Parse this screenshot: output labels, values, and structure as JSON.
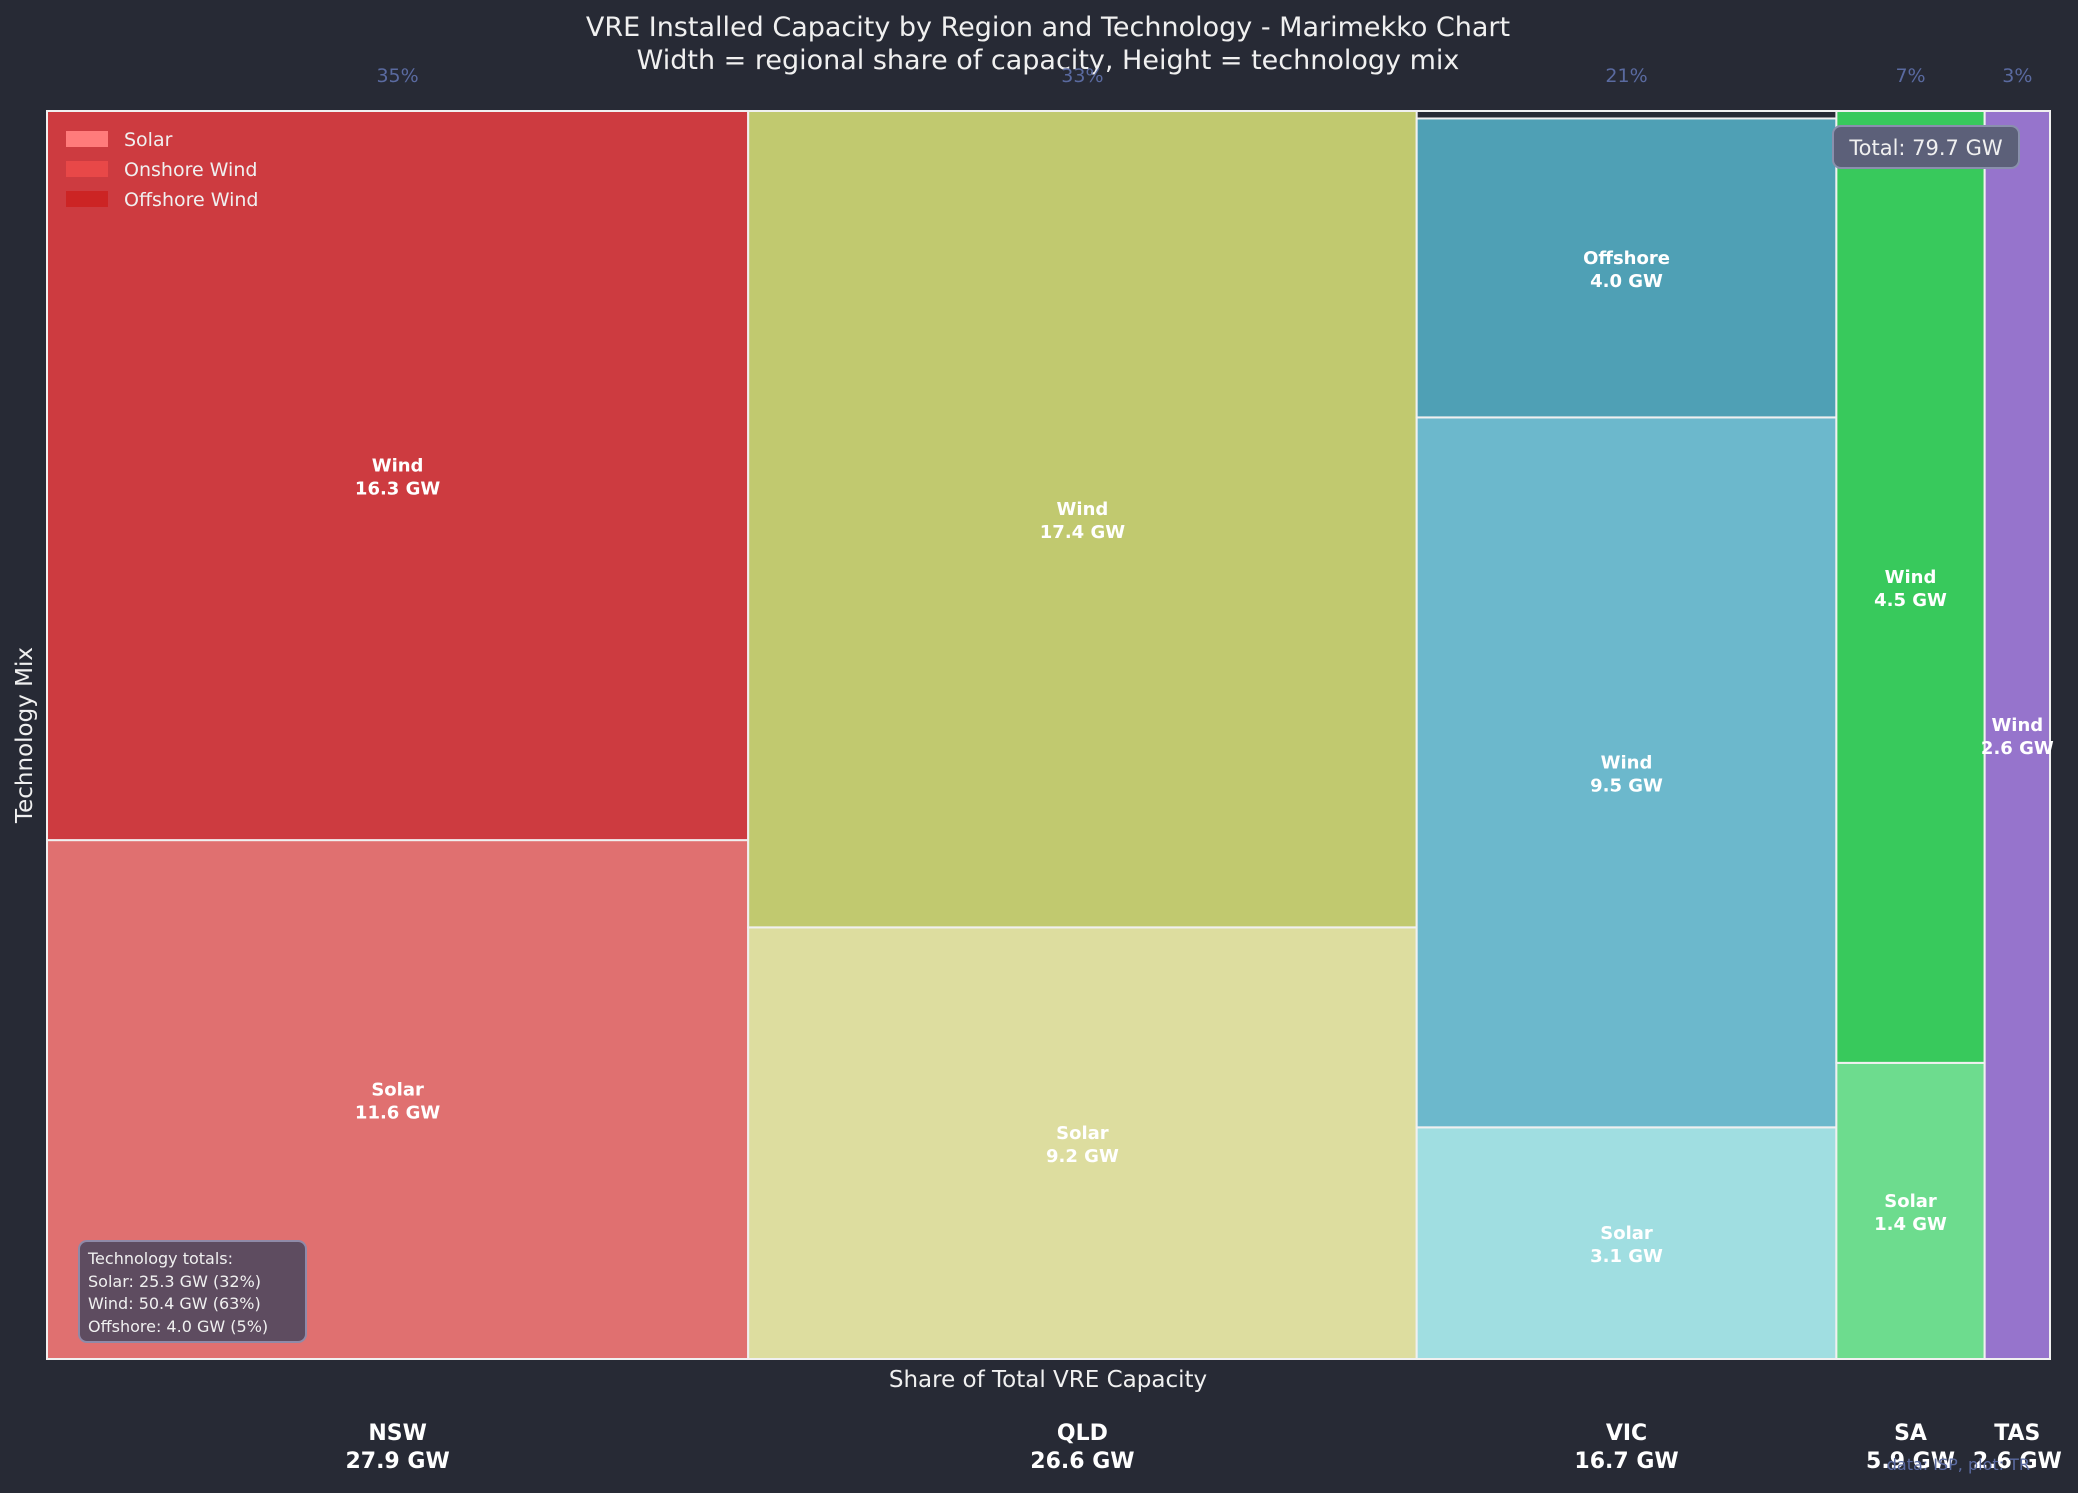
{
  "chart_data": {
    "type": "marimekko",
    "title": "VRE Installed Capacity by Region and Technology - Marimekko Chart",
    "subtitle": "Width = regional share of capacity, Height = technology mix",
    "xlabel": "Share of Total VRE Capacity",
    "ylabel": "Technology Mix",
    "unit": "GW",
    "total_label": "Total: 79.7 GW",
    "footer_note": "data: ISP, plot: TR",
    "legend": {
      "position": "top-left",
      "entries": [
        {
          "label": "Solar",
          "color": "#ff7b7b"
        },
        {
          "label": "Onshore Wind",
          "color": "#e84848"
        },
        {
          "label": "Offshore Wind",
          "color": "#cc2424"
        }
      ]
    },
    "totals_box": {
      "title": "Technology totals:",
      "lines": [
        "Solar: 25.3 GW (32%)",
        "Wind: 50.4 GW (63%)",
        "Offshore: 4.0 GW (5%)"
      ]
    },
    "regions": [
      {
        "name": "NSW",
        "total": 27.9,
        "total_label": "27.9 GW",
        "share_label": "35%",
        "segments": [
          {
            "tech": "Solar",
            "value": 11.6,
            "label": "Solar",
            "value_label": "11.6 GW",
            "color": "#e07070"
          },
          {
            "tech": "Wind",
            "value": 16.3,
            "label": "Wind",
            "value_label": "16.3 GW",
            "color": "#cd3b40"
          }
        ]
      },
      {
        "name": "QLD",
        "total": 26.6,
        "total_label": "26.6 GW",
        "share_label": "33%",
        "segments": [
          {
            "tech": "Solar",
            "value": 9.2,
            "label": "Solar",
            "value_label": "9.2 GW",
            "color": "#dddd9f"
          },
          {
            "tech": "Wind",
            "value": 17.4,
            "label": "Wind",
            "value_label": "17.4 GW",
            "color": "#c1c96f"
          }
        ]
      },
      {
        "name": "VIC",
        "total": 16.7,
        "total_label": "16.7 GW",
        "share_label": "21%",
        "segments": [
          {
            "tech": "Solar",
            "value": 3.1,
            "label": "Solar",
            "value_label": "3.1 GW",
            "color": "#a0dee1"
          },
          {
            "tech": "Wind",
            "value": 9.5,
            "label": "Wind",
            "value_label": "9.5 GW",
            "color": "#6cb8cc"
          },
          {
            "tech": "Offshore",
            "value": 4.0,
            "label": "Offshore",
            "value_label": "4.0 GW",
            "color": "#4fa0b5"
          }
        ]
      },
      {
        "name": "SA",
        "total": 5.9,
        "total_label": "5.9 GW",
        "share_label": "7%",
        "segments": [
          {
            "tech": "Solar",
            "value": 1.4,
            "label": "Solar",
            "value_label": "1.4 GW",
            "color": "#6ddc8e"
          },
          {
            "tech": "Wind",
            "value": 4.5,
            "label": "Wind",
            "value_label": "4.5 GW",
            "color": "#38c95c"
          }
        ]
      },
      {
        "name": "TAS",
        "total": 2.6,
        "total_label": "2.6 GW",
        "share_label": "3%",
        "segments": [
          {
            "tech": "Wind",
            "value": 2.6,
            "label": "Wind",
            "value_label": "2.6 GW",
            "color": "#9674cc"
          }
        ]
      }
    ]
  }
}
